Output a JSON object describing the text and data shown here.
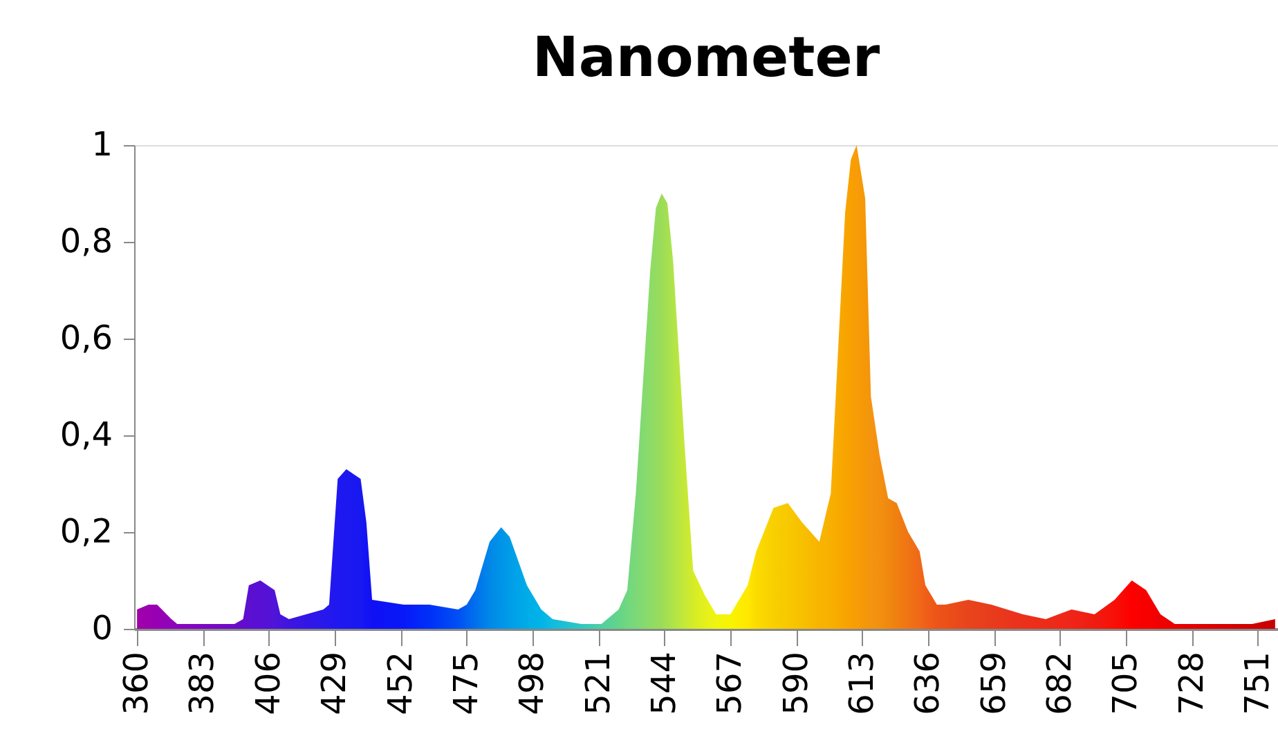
{
  "chart_data": {
    "type": "area",
    "title": "Nanometer",
    "xlim": [
      359,
      758
    ],
    "xticks": [
      360,
      383,
      406,
      429,
      452,
      475,
      498,
      521,
      544,
      567,
      590,
      613,
      636,
      659,
      682,
      705,
      728,
      751
    ],
    "ylim": [
      0,
      1
    ],
    "yticks": [
      0,
      {
        "value": 0.2,
        "label": "0,2"
      },
      {
        "value": 0.4,
        "label": "0,4"
      },
      {
        "value": 0.6,
        "label": "0,6"
      },
      {
        "value": 0.8,
        "label": "0,8"
      },
      1
    ],
    "grid": false,
    "series": [
      {
        "x": [
          360,
          364,
          367,
          372,
          374,
          394,
          397,
          399,
          403,
          408,
          410,
          413,
          425,
          427,
          430,
          433,
          438,
          440,
          442,
          453,
          462,
          472,
          475,
          478,
          483,
          487,
          490,
          493,
          496,
          501,
          505,
          515,
          522,
          528,
          531,
          534,
          539,
          541,
          543,
          545,
          547,
          551,
          554,
          558,
          562,
          567,
          573,
          576,
          582,
          587,
          592,
          598,
          602,
          607,
          609,
          611,
          614,
          616,
          619,
          622,
          625,
          629,
          633,
          635,
          639,
          642,
          650,
          658,
          669,
          677,
          686,
          694,
          701,
          707,
          712,
          717,
          722,
          749,
          757
        ],
        "values": [
          0.04,
          0.05,
          0.05,
          0.02,
          0.01,
          0.01,
          0.02,
          0.09,
          0.1,
          0.08,
          0.03,
          0.02,
          0.04,
          0.05,
          0.31,
          0.33,
          0.31,
          0.22,
          0.06,
          0.05,
          0.05,
          0.04,
          0.05,
          0.08,
          0.18,
          0.21,
          0.19,
          0.14,
          0.09,
          0.04,
          0.02,
          0.01,
          0.01,
          0.04,
          0.08,
          0.28,
          0.74,
          0.87,
          0.9,
          0.88,
          0.76,
          0.38,
          0.12,
          0.07,
          0.03,
          0.03,
          0.09,
          0.16,
          0.25,
          0.26,
          0.22,
          0.18,
          0.28,
          0.86,
          0.97,
          1.0,
          0.89,
          0.48,
          0.36,
          0.27,
          0.26,
          0.2,
          0.16,
          0.09,
          0.05,
          0.05,
          0.06,
          0.05,
          0.03,
          0.02,
          0.04,
          0.03,
          0.06,
          0.1,
          0.08,
          0.03,
          0.01,
          0.01,
          0.02
        ],
        "colors": [
          "#a000a8",
          "#9c00b0",
          "#9800b4",
          "#9004b8",
          "#8c04bc",
          "#6c0cc8",
          "#640ccc",
          "#5c10d0",
          "#5810d4",
          "#5014d8",
          "#4814dc",
          "#4014e0",
          "#2818ec",
          "#2418ee",
          "#2018f0",
          "#1c18f0",
          "#1818f0",
          "#1414f4",
          "#1010f4",
          "#0818f8",
          "#0030f8",
          "#0050f4",
          "#0060f0",
          "#0070ec",
          "#0088e8",
          "#0094e8",
          "#009ce8",
          "#00a4e8",
          "#00ace8",
          "#00b4e8",
          "#10bce0",
          "#30c8c0",
          "#50d0a0",
          "#64d488",
          "#70d880",
          "#7cd878",
          "#8cdc68",
          "#94dc60",
          "#9cdc58",
          "#a4e050",
          "#b0e448",
          "#c4e838",
          "#d4ec28",
          "#e4f01c",
          "#f0f410",
          "#f8f400",
          "#ffe800",
          "#fcdc00",
          "#f8d000",
          "#f8c800",
          "#f8c000",
          "#f8b400",
          "#f8b000",
          "#f8a400",
          "#f8a000",
          "#f89c08",
          "#f49808",
          "#f49410",
          "#f49010",
          "#f08810",
          "#f08010",
          "#f07414",
          "#f06818",
          "#f06018",
          "#ec5418",
          "#ec5018",
          "#e8441c",
          "#e83c1c",
          "#ec301c",
          "#ec2c18",
          "#f02418",
          "#f01c10",
          "#f81008",
          "#fc0000",
          "#f80000",
          "#f00000",
          "#e80000",
          "#d00000",
          "#c80000"
        ]
      }
    ]
  }
}
